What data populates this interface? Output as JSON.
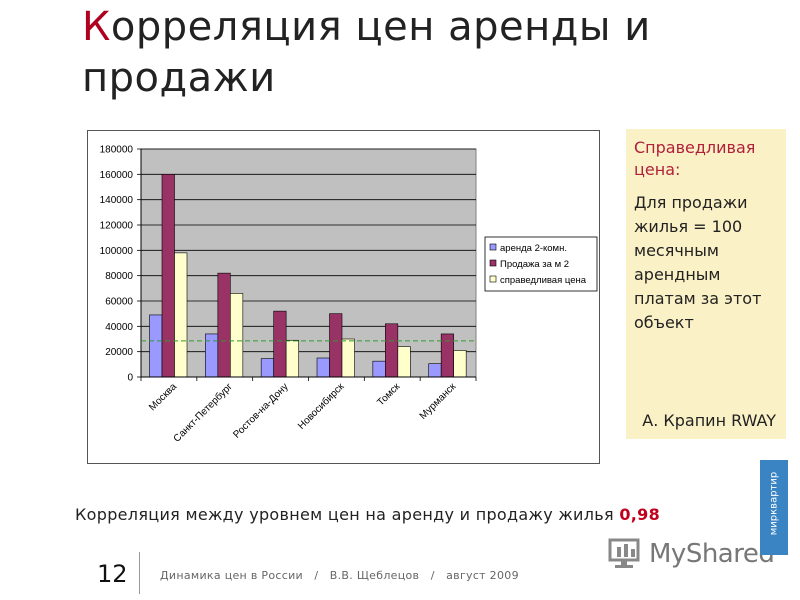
{
  "slide": {
    "title_first": "К",
    "title_rest": "орреляция цен аренды и продажи",
    "sidebox": {
      "heading": "Справедливая цена:",
      "body": "Для продажи жилья = 100 месячным арендным платам за этот объект",
      "author": "А. Крапин RWAY"
    },
    "correlation_text": "Корреляция между уровнем цен на аренду и продажу жилья",
    "correlation_value": "0,98",
    "page_number": "12",
    "footer": "Динамика цен в России   /   В.В. Щеблецов   /   август 2009",
    "watermark": "MyShared",
    "logo_tab": "мирквартир"
  },
  "colors": {
    "rent": "#9999ff",
    "sale": "#993366",
    "fair": "#ffffcc",
    "plot_bg": "#c0c0c0",
    "avg_line": "#339933"
  },
  "chart_data": {
    "type": "bar",
    "categories": [
      "Москва",
      "Санкт-Петербург",
      "Ростов-на-Дону",
      "Новосибирск",
      "Томск",
      "Мурманск"
    ],
    "series": [
      {
        "name": "аренда 2-комн.",
        "values": [
          49000,
          34000,
          14500,
          15000,
          12500,
          10500
        ]
      },
      {
        "name": "Продажа за м 2",
        "values": [
          160000,
          82000,
          52000,
          50000,
          42000,
          34000
        ]
      },
      {
        "name": "справедливая цена",
        "values": [
          98000,
          66000,
          29000,
          30000,
          24000,
          21000
        ]
      }
    ],
    "yticks": [
      "0",
      "20000",
      "40000",
      "60000",
      "80000",
      "100000",
      "120000",
      "140000",
      "160000",
      "180000"
    ],
    "ylim": [
      0,
      180000
    ],
    "reference_line": 28500,
    "legend_position": "right",
    "grid": true
  }
}
